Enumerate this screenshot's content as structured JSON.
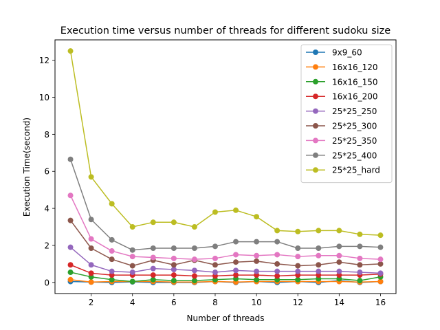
{
  "chart_data": {
    "type": "line",
    "title": "Execution time versus number of threads for different sudoku size",
    "xlabel": "Number of threads",
    "ylabel": "Execution Time(second)",
    "xlim": [
      0.25,
      16.75
    ],
    "ylim": [
      -0.6,
      13.1
    ],
    "xticks": [
      2,
      4,
      6,
      8,
      10,
      12,
      14,
      16
    ],
    "xtick_labels": [
      "2",
      "4",
      "6",
      "8",
      "10",
      "12",
      "14",
      "16"
    ],
    "yticks": [
      0,
      2,
      4,
      6,
      8,
      10,
      12
    ],
    "ytick_labels": [
      "0",
      "2",
      "4",
      "6",
      "8",
      "10",
      "12"
    ],
    "grid": false,
    "legend_position": "upper right",
    "markers": "circle",
    "x": [
      1,
      2,
      3,
      4,
      5,
      6,
      7,
      8,
      9,
      10,
      11,
      12,
      13,
      14,
      15,
      16
    ],
    "series": [
      {
        "name": "9x9_60",
        "color": "#1f77b4",
        "values": [
          0.05,
          0.02,
          0.0,
          0.03,
          0.0,
          0.0,
          0.0,
          0.05,
          0.0,
          0.05,
          0.0,
          0.05,
          0.0,
          0.1,
          0.0,
          0.05
        ]
      },
      {
        "name": "16x16_120",
        "color": "#ff7f0e",
        "values": [
          0.15,
          0.02,
          0.05,
          0.05,
          0.05,
          0.02,
          0.02,
          0.05,
          0.02,
          0.05,
          0.05,
          0.05,
          0.05,
          0.05,
          0.02,
          0.05
        ]
      },
      {
        "name": "16x16_150",
        "color": "#2ca02c",
        "values": [
          0.55,
          0.3,
          0.15,
          0.05,
          0.15,
          0.1,
          0.1,
          0.15,
          0.2,
          0.15,
          0.15,
          0.15,
          0.2,
          0.2,
          0.1,
          0.3
        ]
      },
      {
        "name": "16x16_200",
        "color": "#d62728",
        "values": [
          0.95,
          0.5,
          0.4,
          0.4,
          0.4,
          0.4,
          0.35,
          0.35,
          0.4,
          0.4,
          0.35,
          0.4,
          0.4,
          0.4,
          0.4,
          0.45
        ]
      },
      {
        "name": "25*25_250",
        "color": "#9467bd",
        "values": [
          1.9,
          0.95,
          0.6,
          0.55,
          0.75,
          0.7,
          0.65,
          0.55,
          0.65,
          0.6,
          0.6,
          0.6,
          0.6,
          0.6,
          0.55,
          0.5
        ]
      },
      {
        "name": "25*25_300",
        "color": "#8c564b",
        "values": [
          3.35,
          1.85,
          1.25,
          0.9,
          1.2,
          0.95,
          1.2,
          0.95,
          1.1,
          1.15,
          1.0,
          0.9,
          0.95,
          1.1,
          0.95,
          1.0
        ]
      },
      {
        "name": "25*25_350",
        "color": "#e377c2",
        "values": [
          4.7,
          2.35,
          1.7,
          1.4,
          1.35,
          1.3,
          1.25,
          1.3,
          1.5,
          1.45,
          1.5,
          1.4,
          1.45,
          1.45,
          1.3,
          1.25
        ]
      },
      {
        "name": "25*25_400",
        "color": "#7f7f7f",
        "values": [
          6.65,
          3.4,
          2.3,
          1.75,
          1.85,
          1.85,
          1.85,
          1.95,
          2.2,
          2.2,
          2.2,
          1.85,
          1.85,
          1.95,
          1.95,
          1.9
        ]
      },
      {
        "name": "25*25_hard",
        "color": "#bcbd22",
        "values": [
          12.5,
          5.7,
          4.25,
          3.0,
          3.25,
          3.25,
          3.0,
          3.8,
          3.9,
          3.55,
          2.8,
          2.75,
          2.8,
          2.8,
          2.6,
          2.55
        ]
      }
    ]
  }
}
